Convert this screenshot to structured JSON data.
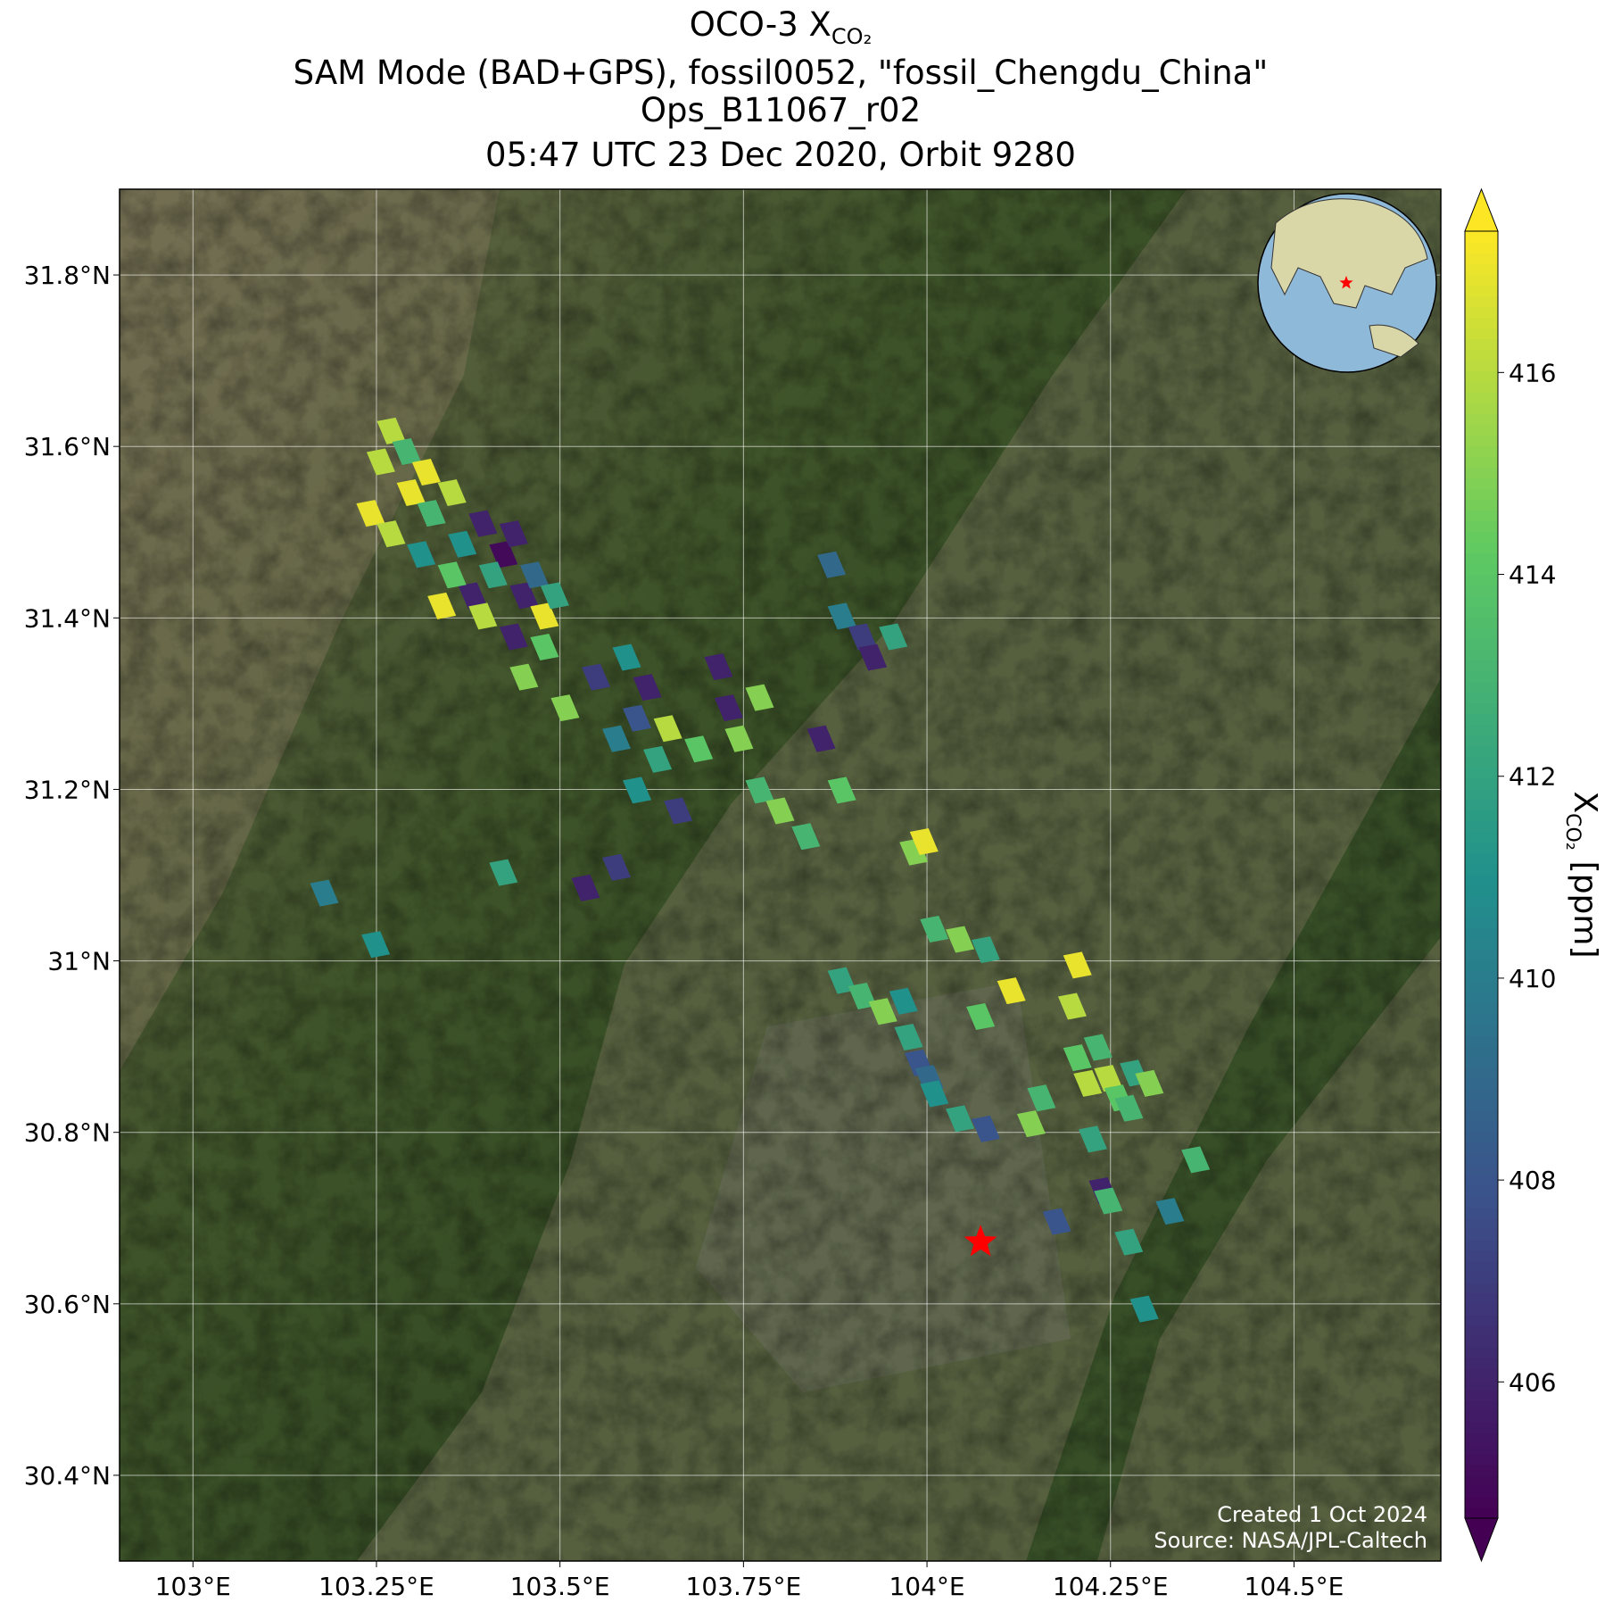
{
  "chart_data": {
    "type": "map",
    "title_prefix": "OCO-3 X",
    "title_sub": "CO₂",
    "subtitle_lines": [
      "SAM Mode (BAD+GPS), fossil0052, \"fossil_Chengdu_China\"",
      "Ops_B11067_r02",
      "05:47 UTC 23 Dec 2020, Orbit 9280"
    ],
    "xlim": [
      102.9,
      104.7
    ],
    "ylim": [
      30.3,
      31.9
    ],
    "xticks": [
      {
        "value": 103,
        "label": "103°E"
      },
      {
        "value": 103.25,
        "label": "103.25°E"
      },
      {
        "value": 103.5,
        "label": "103.5°E"
      },
      {
        "value": 103.75,
        "label": "103.75°E"
      },
      {
        "value": 104,
        "label": "104°E"
      },
      {
        "value": 104.25,
        "label": "104.25°E"
      },
      {
        "value": 104.5,
        "label": "104.5°E"
      }
    ],
    "yticks": [
      {
        "value": 30.4,
        "label": "30.4°N"
      },
      {
        "value": 30.6,
        "label": "30.6°N"
      },
      {
        "value": 30.8,
        "label": "30.8°N"
      },
      {
        "value": 31,
        "label": "31°N"
      },
      {
        "value": 31.2,
        "label": "31.2°N"
      },
      {
        "value": 31.4,
        "label": "31.4°N"
      },
      {
        "value": 31.6,
        "label": "31.6°N"
      },
      {
        "value": 31.8,
        "label": "31.8°N"
      }
    ],
    "grid": true,
    "colormap": "viridis",
    "clim": [
      404.65,
      417.4
    ],
    "cticks": [
      406,
      408,
      410,
      412,
      414,
      416
    ],
    "colorbar_label_main": "X",
    "colorbar_label_sub": "CO₂",
    "colorbar_label_unit": "[ppm]",
    "target_lon": 104.073,
    "target_lat": 30.672,
    "target_color": "#ff0000",
    "footer_lines": [
      "Created 1 Oct 2024",
      "Source: NASA/JPL-Caltech"
    ],
    "lon": [
      103.27,
      103.291,
      103.318,
      103.256,
      103.297,
      103.242,
      103.27,
      103.325,
      103.353,
      103.367,
      103.395,
      103.423,
      103.437,
      103.409,
      103.381,
      103.451,
      103.479,
      103.465,
      103.493,
      103.437,
      103.353,
      103.311,
      103.339,
      103.479,
      103.451,
      103.395,
      103.507,
      103.549,
      103.591,
      103.619,
      103.647,
      103.605,
      103.577,
      103.633,
      103.689,
      103.716,
      103.73,
      103.744,
      103.772,
      103.605,
      103.661,
      103.772,
      103.8,
      103.835,
      103.884,
      103.856,
      103.423,
      103.535,
      103.577,
      103.179,
      103.249,
      103.87,
      103.884,
      103.912,
      103.926,
      103.954,
      103.982,
      103.996,
      104.01,
      104.045,
      104.08,
      104.115,
      104.073,
      103.884,
      103.912,
      103.94,
      103.968,
      103.975,
      103.989,
      104.003,
      104.01,
      104.045,
      104.08,
      104.142,
      104.156,
      104.205,
      104.198,
      104.205,
      104.219,
      104.233,
      104.247,
      104.261,
      104.275,
      104.282,
      104.303,
      104.226,
      104.24,
      104.247,
      104.177,
      104.275,
      104.331,
      104.366,
      104.296
    ],
    "lat": [
      31.618,
      31.594,
      31.57,
      31.582,
      31.546,
      31.522,
      31.498,
      31.522,
      31.546,
      31.486,
      31.51,
      31.474,
      31.498,
      31.45,
      31.426,
      31.426,
      31.402,
      31.45,
      31.426,
      31.378,
      31.45,
      31.474,
      31.414,
      31.366,
      31.331,
      31.402,
      31.295,
      31.331,
      31.354,
      31.319,
      31.271,
      31.283,
      31.259,
      31.235,
      31.247,
      31.343,
      31.295,
      31.259,
      31.307,
      31.199,
      31.175,
      31.199,
      31.175,
      31.145,
      31.199,
      31.259,
      31.103,
      31.085,
      31.109,
      31.079,
      31.019,
      31.462,
      31.402,
      31.378,
      31.354,
      31.378,
      31.127,
      31.139,
      31.037,
      31.025,
      31.013,
      30.965,
      30.935,
      30.977,
      30.959,
      30.941,
      30.953,
      30.911,
      30.881,
      30.863,
      30.845,
      30.816,
      30.804,
      30.81,
      30.84,
      30.995,
      30.947,
      30.887,
      30.857,
      30.899,
      30.863,
      30.84,
      30.828,
      30.869,
      30.857,
      30.792,
      30.732,
      30.72,
      30.696,
      30.672,
      30.708,
      30.768,
      30.594
    ],
    "xco2": [
      416,
      413,
      417,
      416,
      417,
      417,
      416,
      413,
      416,
      411,
      406,
      405,
      406,
      412,
      406,
      406,
      417,
      409,
      412,
      406,
      414,
      411,
      417,
      414,
      415,
      416,
      415,
      407,
      411,
      406,
      416,
      408,
      410,
      412,
      414,
      406,
      406,
      415,
      415,
      411,
      407,
      413,
      415,
      413,
      414,
      406,
      412,
      406,
      407,
      410,
      411,
      409,
      410,
      407,
      406,
      412,
      415,
      417,
      413,
      415,
      412,
      417,
      414,
      412,
      413,
      415,
      411,
      412,
      408,
      409,
      411,
      412,
      408,
      415,
      413,
      417,
      416,
      414,
      416,
      413,
      416,
      414,
      413,
      412,
      415,
      412,
      406,
      413,
      408,
      412,
      410,
      413,
      411
    ]
  }
}
